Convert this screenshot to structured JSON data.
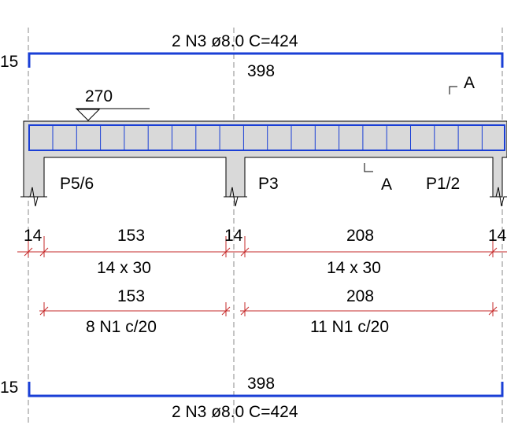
{
  "top_bar": {
    "label": "2 N3 ø8.0  C=424",
    "hook_left": "15",
    "length": "398"
  },
  "section_mark_top": "A",
  "section_mark_bottom": "A",
  "level_marker": "270",
  "supports": {
    "left": "P5/6",
    "middle": "P3",
    "right": "P1/2"
  },
  "dimensions": {
    "support_left": "14",
    "span_left": "153",
    "support_middle": "14",
    "span_right": "208",
    "support_right": "14"
  },
  "section_size": {
    "left": "14 x 30",
    "right": "14 x 30"
  },
  "stirrups": {
    "left_length": "153",
    "right_length": "208",
    "left_label": "8 N1 c/20",
    "right_label": "11 N1 c/20"
  },
  "bottom_bar": {
    "label": "2 N3 ø8.0  C=424",
    "hook_left": "15",
    "length": "398"
  },
  "colors": {
    "rebar": "#1a3fd6",
    "dimension": "#c62828",
    "beam_fill": "#d9d9d9",
    "axis": "#888888"
  }
}
